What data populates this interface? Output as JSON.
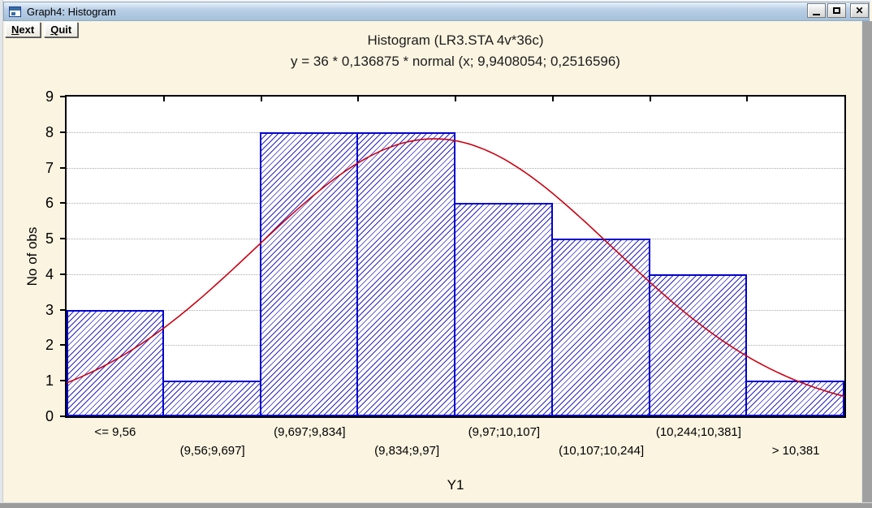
{
  "window": {
    "title": "Graph4: Histogram",
    "icons": {
      "minimize": "underscore",
      "maximize": "square-outline",
      "close": "x-mark"
    }
  },
  "toolbar": {
    "buttons": [
      {
        "label": "Next",
        "accelerator": "N"
      },
      {
        "label": "Quit",
        "accelerator": "Q"
      }
    ]
  },
  "chart_data": {
    "type": "bar",
    "title": "Histogram (LR3.STA 4v*36c)",
    "subtitle": "y = 36 * 0,136875 * normal (x; 9,9408054; 0,2516596)",
    "xlabel": "Y1",
    "ylabel": "No of obs",
    "categories": [
      "<= 9,56",
      "(9,56;9,697]",
      "(9,697;9,834]",
      "(9,834;9,97]",
      "(9,97;10,107]",
      "(10,107;10,244]",
      "(10,244;10,381]",
      "> 10,381"
    ],
    "values": [
      3,
      1,
      8,
      8,
      6,
      5,
      4,
      1
    ],
    "ylim": [
      0,
      9
    ],
    "yticks": [
      0,
      1,
      2,
      3,
      4,
      5,
      6,
      7,
      8,
      9
    ],
    "grid": "horizontal-dotted",
    "legend": "none",
    "normal_curve": {
      "n": 36,
      "bin_width": 0.136875,
      "mu": 9.9408054,
      "sigma": 0.2516596,
      "x_start": 9.423125,
      "x_end": 10.518125
    },
    "colors": {
      "bar_border": "#0202cf",
      "bar_hatch": "#2626c4",
      "curve": "#cc0011",
      "chart_background": "#faf4e1",
      "plot_background": "#ffffff",
      "gridline": "#ababab",
      "titlebar": "#aec8e2"
    }
  }
}
